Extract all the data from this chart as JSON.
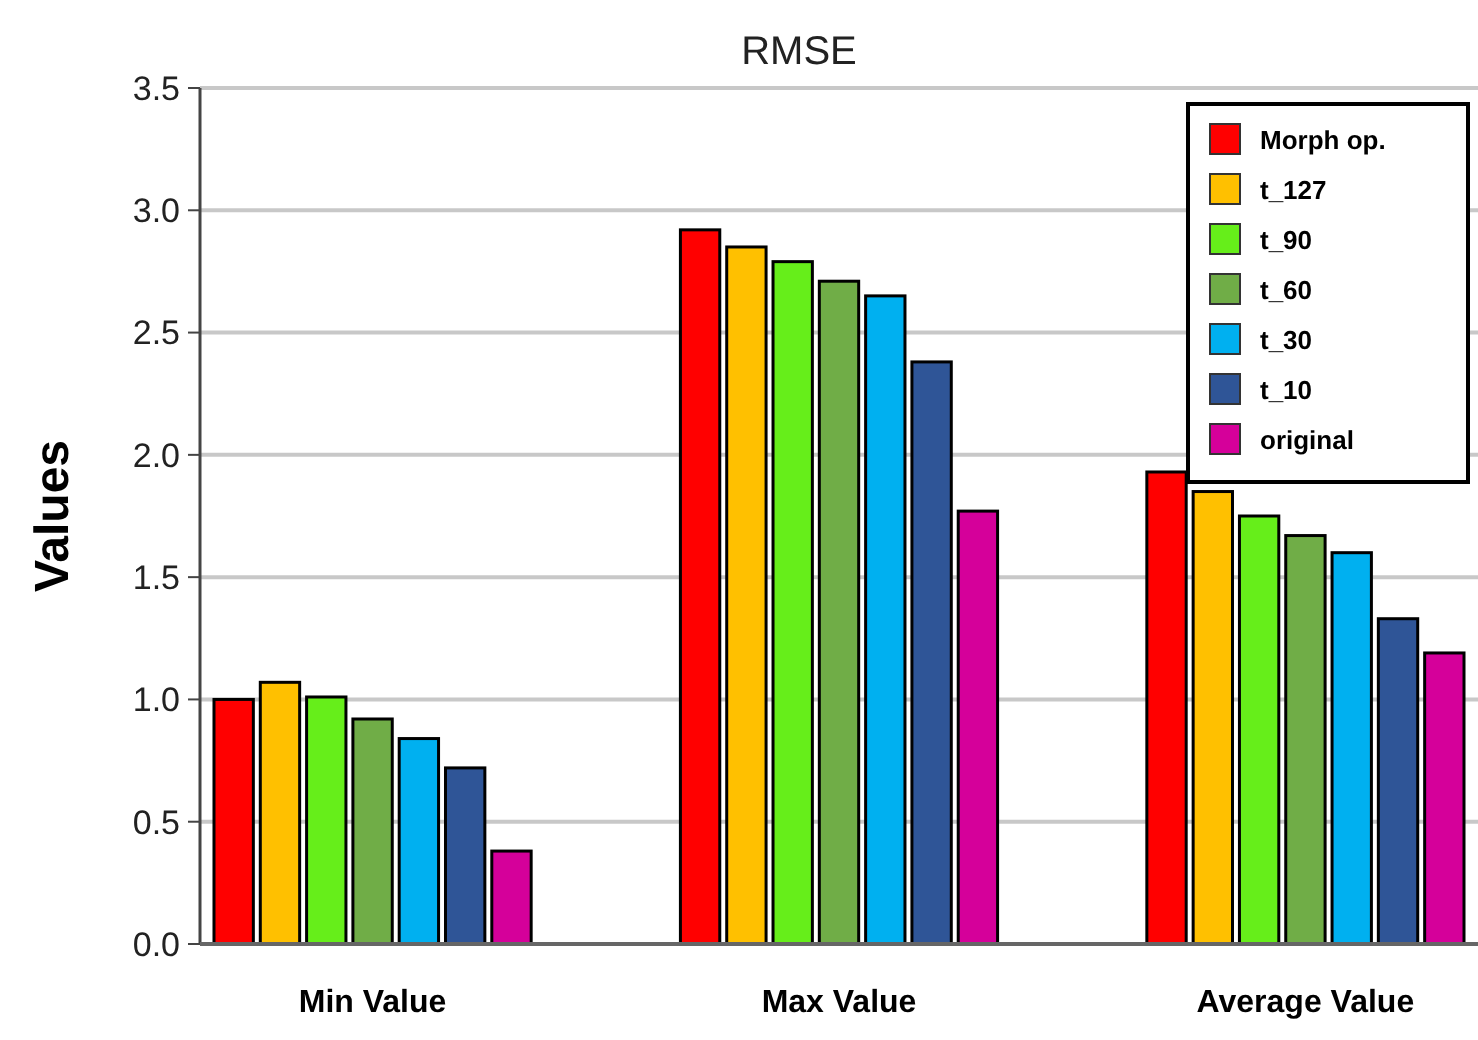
{
  "chart_data": {
    "type": "bar",
    "title": "RMSE",
    "ylabel": "Values",
    "categories": [
      "Min Value",
      "Max Value",
      "Average Value"
    ],
    "series": [
      {
        "name": "Morph op.",
        "color": "#ff0000",
        "values": [
          1.0,
          2.92,
          1.93
        ]
      },
      {
        "name": "t_127",
        "color": "#ffc000",
        "values": [
          1.07,
          2.85,
          1.85
        ]
      },
      {
        "name": "t_90",
        "color": "#66ee1a",
        "values": [
          1.01,
          2.79,
          1.75
        ]
      },
      {
        "name": "t_60",
        "color": "#70ad47",
        "values": [
          0.92,
          2.71,
          1.67
        ]
      },
      {
        "name": "t_30",
        "color": "#00b0f0",
        "values": [
          0.84,
          2.65,
          1.6
        ]
      },
      {
        "name": "t_10",
        "color": "#2f5597",
        "values": [
          0.72,
          2.38,
          1.33
        ]
      },
      {
        "name": "original",
        "color": "#d5009a",
        "values": [
          0.38,
          1.77,
          1.19
        ]
      }
    ],
    "ylim": [
      0,
      3.5
    ],
    "yticks": [
      {
        "value": 0,
        "label": "0.0"
      },
      {
        "value": 0.5,
        "label": "0.5"
      },
      {
        "value": 1,
        "label": "1.0"
      },
      {
        "value": 1.5,
        "label": "1.5"
      },
      {
        "value": 2,
        "label": "2.0"
      },
      {
        "value": 2.5,
        "label": "2.5"
      },
      {
        "value": 3,
        "label": "3.0"
      },
      {
        "value": 3.5,
        "label": "3.5"
      }
    ],
    "grid": "y",
    "legend": "top right"
  }
}
